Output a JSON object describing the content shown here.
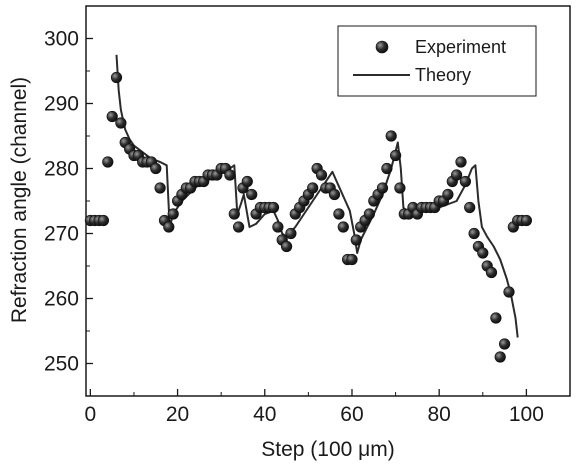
{
  "chart_data": {
    "type": "scatter",
    "title": "",
    "xlabel": "Step (100 μm)",
    "ylabel": "Refraction angle (channel)",
    "xlim": [
      -1,
      110
    ],
    "ylim": [
      245,
      305
    ],
    "xticks": [
      0,
      20,
      40,
      60,
      80,
      100
    ],
    "yticks": [
      250,
      260,
      270,
      280,
      290,
      300
    ],
    "grid": false,
    "legend_position": "top-right",
    "series": [
      {
        "name": "Experiment",
        "kind": "scatter",
        "color": "#2b2b2b",
        "points": [
          [
            0,
            272
          ],
          [
            1,
            272
          ],
          [
            2,
            272
          ],
          [
            3,
            272
          ],
          [
            4,
            281
          ],
          [
            5,
            288
          ],
          [
            6,
            294
          ],
          [
            7,
            287
          ],
          [
            8,
            284
          ],
          [
            9,
            283
          ],
          [
            10,
            282
          ],
          [
            11,
            282
          ],
          [
            12,
            281
          ],
          [
            13,
            281
          ],
          [
            14,
            281
          ],
          [
            15,
            280
          ],
          [
            16,
            277
          ],
          [
            17,
            272
          ],
          [
            18,
            271
          ],
          [
            19,
            273
          ],
          [
            20,
            275
          ],
          [
            21,
            276
          ],
          [
            22,
            277
          ],
          [
            23,
            277
          ],
          [
            24,
            278
          ],
          [
            25,
            278
          ],
          [
            26,
            278
          ],
          [
            27,
            279
          ],
          [
            28,
            279
          ],
          [
            29,
            279
          ],
          [
            30,
            280
          ],
          [
            31,
            280
          ],
          [
            32,
            279
          ],
          [
            33,
            273
          ],
          [
            34,
            271
          ],
          [
            35,
            277
          ],
          [
            36,
            278
          ],
          [
            37,
            276
          ],
          [
            38,
            273
          ],
          [
            39,
            274
          ],
          [
            40,
            274
          ],
          [
            41,
            274
          ],
          [
            42,
            274
          ],
          [
            43,
            271
          ],
          [
            44,
            269
          ],
          [
            45,
            268
          ],
          [
            46,
            270
          ],
          [
            47,
            273
          ],
          [
            48,
            274
          ],
          [
            49,
            275
          ],
          [
            50,
            276
          ],
          [
            51,
            277
          ],
          [
            52,
            280
          ],
          [
            53,
            279
          ],
          [
            54,
            277
          ],
          [
            55,
            277
          ],
          [
            56,
            276
          ],
          [
            57,
            273
          ],
          [
            58,
            271
          ],
          [
            59,
            266
          ],
          [
            60,
            266
          ],
          [
            61,
            269
          ],
          [
            62,
            271
          ],
          [
            63,
            272
          ],
          [
            64,
            273
          ],
          [
            65,
            275
          ],
          [
            66,
            276
          ],
          [
            67,
            277
          ],
          [
            68,
            280
          ],
          [
            69,
            285
          ],
          [
            70,
            282
          ],
          [
            71,
            277
          ],
          [
            72,
            273
          ],
          [
            73,
            273
          ],
          [
            74,
            274
          ],
          [
            75,
            273
          ],
          [
            76,
            274
          ],
          [
            77,
            274
          ],
          [
            78,
            274
          ],
          [
            79,
            274
          ],
          [
            80,
            275
          ],
          [
            81,
            275
          ],
          [
            82,
            276
          ],
          [
            83,
            278
          ],
          [
            84,
            279
          ],
          [
            85,
            281
          ],
          [
            86,
            278
          ],
          [
            87,
            274
          ],
          [
            88,
            270
          ],
          [
            89,
            268
          ],
          [
            90,
            267
          ],
          [
            91,
            265
          ],
          [
            92,
            264
          ],
          [
            93,
            257
          ],
          [
            94,
            251
          ],
          [
            95,
            253
          ],
          [
            96,
            261
          ],
          [
            97,
            271
          ],
          [
            98,
            272
          ],
          [
            99,
            272
          ],
          [
            100,
            272
          ]
        ]
      },
      {
        "name": "Theory",
        "kind": "line",
        "color": "#2b2b2b",
        "points": [
          [
            6,
            297.5
          ],
          [
            6.5,
            292
          ],
          [
            7,
            289
          ],
          [
            8,
            286
          ],
          [
            9,
            284.5
          ],
          [
            10,
            283.5
          ],
          [
            12,
            282.5
          ],
          [
            14,
            281.5
          ],
          [
            16,
            281
          ],
          [
            17.5,
            280.5
          ],
          [
            18.2,
            271
          ],
          [
            19,
            273
          ],
          [
            21,
            275
          ],
          [
            24,
            277
          ],
          [
            27,
            278.5
          ],
          [
            30,
            279.5
          ],
          [
            32,
            280
          ],
          [
            33,
            280.5
          ],
          [
            33.7,
            273
          ],
          [
            34.5,
            274.5
          ],
          [
            35.2,
            276
          ],
          [
            36.5,
            271
          ],
          [
            38,
            271.5
          ],
          [
            40,
            273
          ],
          [
            42,
            273.5
          ],
          [
            43,
            272
          ],
          [
            44,
            270
          ],
          [
            45,
            269.5
          ],
          [
            47,
            271
          ],
          [
            49,
            273
          ],
          [
            51,
            275
          ],
          [
            53,
            277
          ],
          [
            54.5,
            278.5
          ],
          [
            55.5,
            279.5
          ],
          [
            56.5,
            278
          ],
          [
            57.5,
            276.5
          ],
          [
            58.5,
            275
          ],
          [
            59.5,
            273.5
          ],
          [
            60.5,
            270
          ],
          [
            61.2,
            267
          ],
          [
            62,
            269
          ],
          [
            63.5,
            271
          ],
          [
            65,
            273
          ],
          [
            67,
            276
          ],
          [
            69,
            280
          ],
          [
            70.5,
            284
          ],
          [
            71.2,
            280
          ],
          [
            71.8,
            274
          ],
          [
            72.5,
            273.5
          ],
          [
            75,
            273.5
          ],
          [
            80,
            274
          ],
          [
            84,
            275
          ],
          [
            86,
            277.5
          ],
          [
            87.5,
            280
          ],
          [
            88.3,
            280.5
          ],
          [
            89,
            275
          ],
          [
            89.8,
            271
          ],
          [
            91,
            269.5
          ],
          [
            92.5,
            268
          ],
          [
            94,
            266
          ],
          [
            95.5,
            263
          ],
          [
            96.5,
            260.5
          ],
          [
            97.5,
            257
          ],
          [
            98,
            254
          ]
        ]
      }
    ]
  }
}
